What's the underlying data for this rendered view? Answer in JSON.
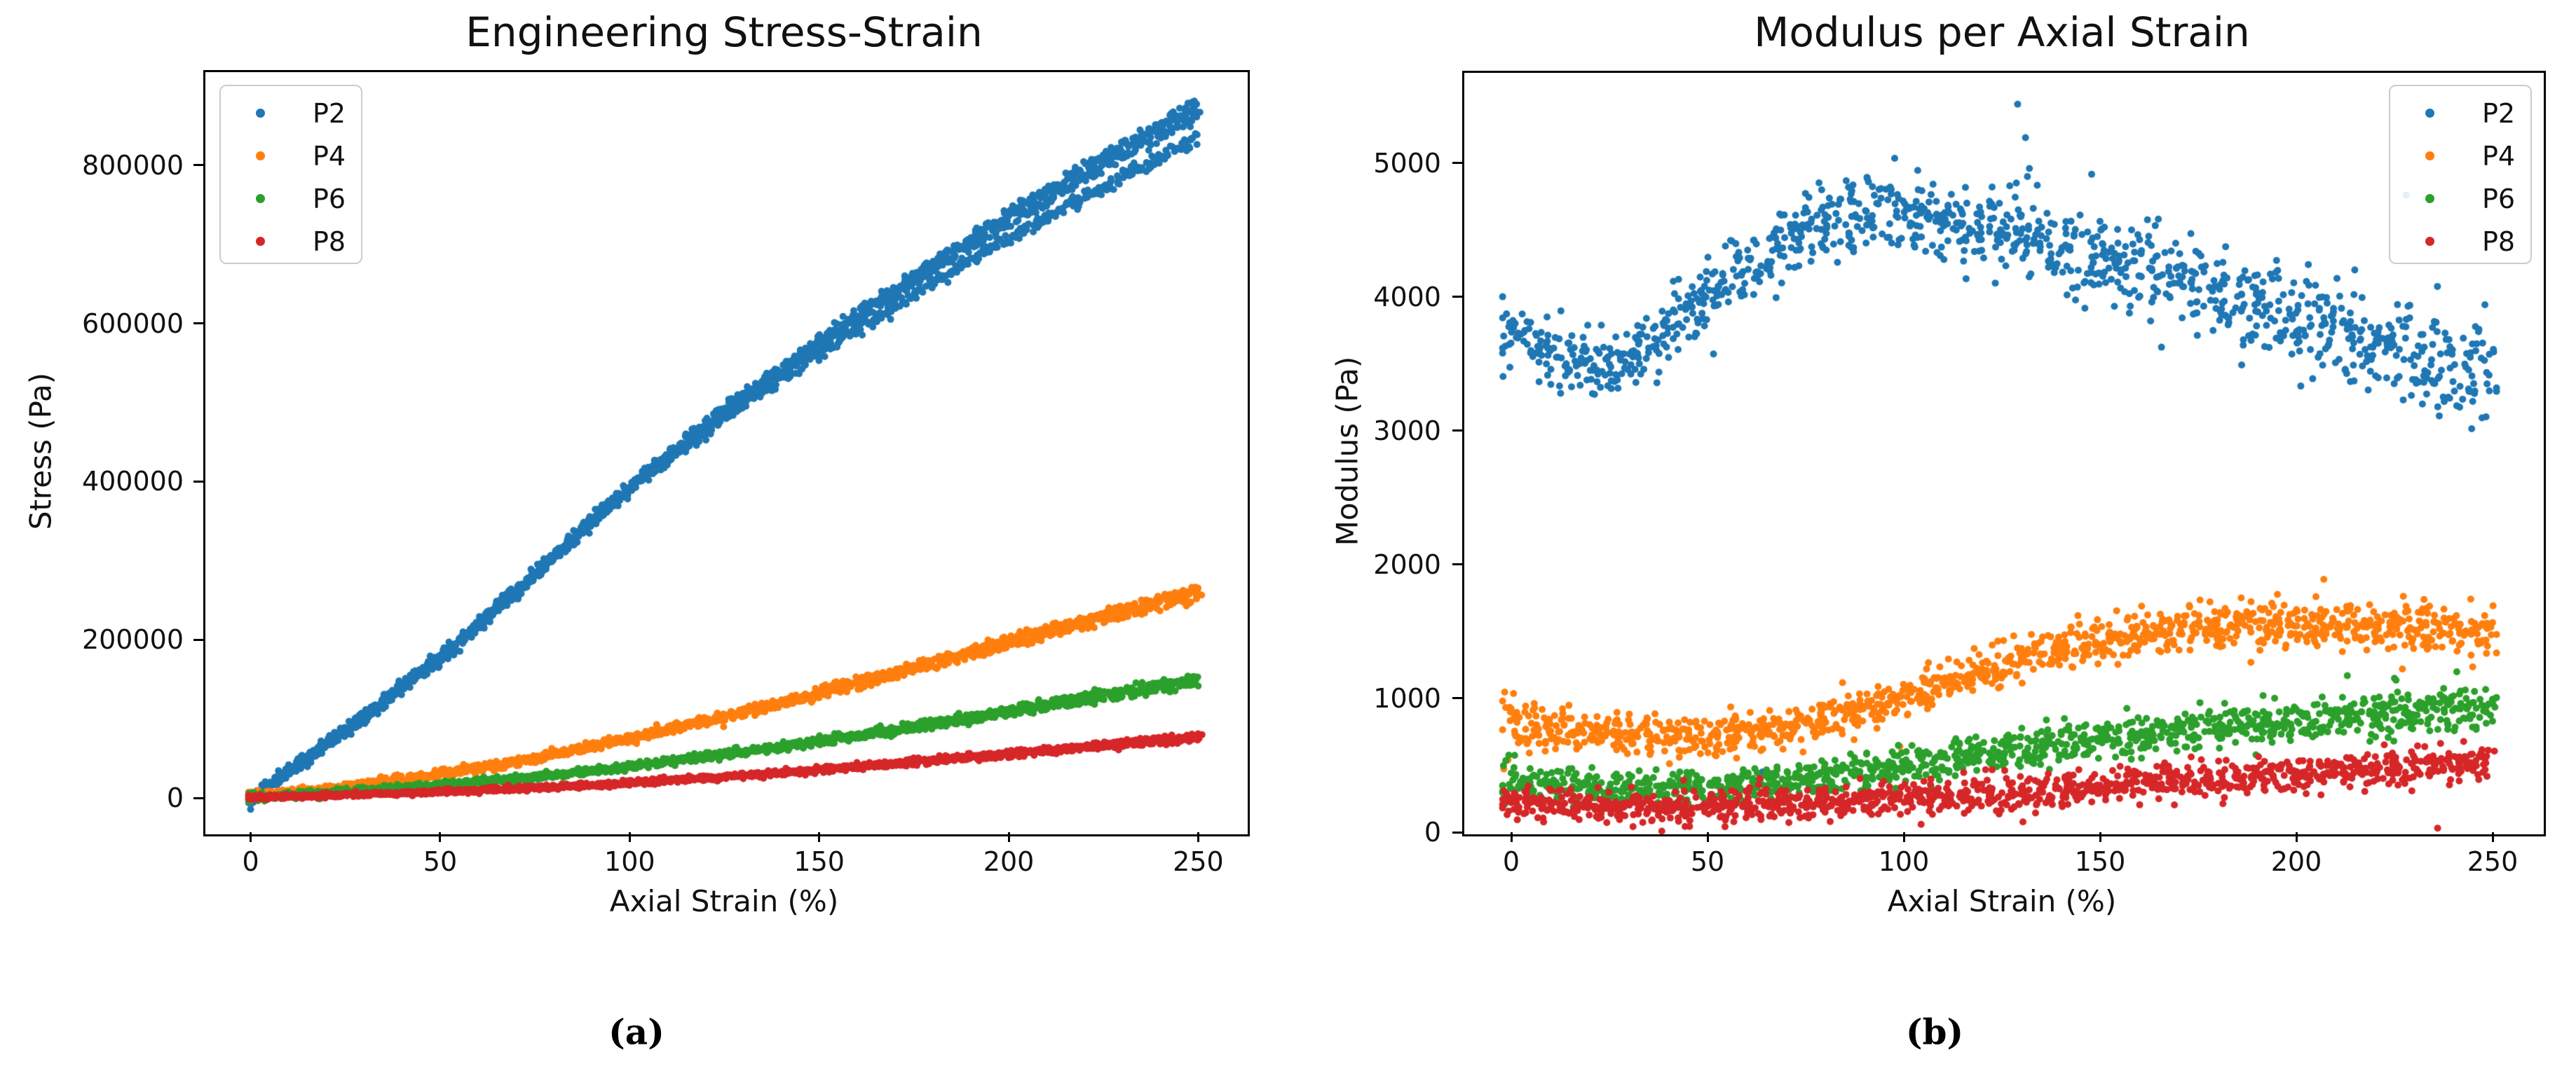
{
  "captions": {
    "a": "(a)",
    "b": "(b)"
  },
  "palette": {
    "blue": "#1f77b4",
    "orange": "#ff7f0e",
    "green": "#2ca02c",
    "red": "#d62728",
    "axis": "#000000",
    "legend_border": "#cccccc"
  },
  "chart_data": [
    {
      "type": "scatter",
      "id": "a",
      "title": "Engineering Stress-Strain",
      "xlabel": "Axial Strain (%)",
      "ylabel": "Stress (Pa)",
      "xlim": [
        -12.5,
        262.5
      ],
      "ylim": [
        -43000,
        920000
      ],
      "x_ticks": [
        0,
        50,
        100,
        150,
        200,
        250
      ],
      "y_ticks": [
        0,
        200000,
        400000,
        600000,
        800000
      ],
      "grid": false,
      "legend_position": "upper-left",
      "marker_radius": 5,
      "series": [
        {
          "name": "P2",
          "color": "#1f77b4",
          "anchors": [
            [
              0,
              0
            ],
            [
              5,
              16000
            ],
            [
              10,
              34000
            ],
            [
              20,
              69000
            ],
            [
              30,
              104000
            ],
            [
              40,
              140000
            ],
            [
              50,
              178000
            ],
            [
              60,
              218000
            ],
            [
              75,
              283000
            ],
            [
              100,
              393000
            ],
            [
              125,
              488000
            ],
            [
              150,
              573000
            ],
            [
              175,
              653000
            ],
            [
              200,
              728000
            ],
            [
              225,
              798000
            ],
            [
              250,
              865000
            ]
          ],
          "noise": [
            4200,
            4200
          ],
          "x_jitter": 0.7,
          "branches": [
            {
              "offset": 15000,
              "ramp_start": 90
            },
            {
              "offset": 0,
              "ramp_start": 90
            },
            {
              "offset": -30000,
              "ramp_start": 90
            }
          ],
          "points_per_branch": 700
        },
        {
          "name": "P4",
          "color": "#ff7f0e",
          "anchors": [
            [
              0,
              2000
            ],
            [
              25,
              14000
            ],
            [
              50,
              30000
            ],
            [
              75,
              50000
            ],
            [
              100,
              76000
            ],
            [
              125,
              103000
            ],
            [
              150,
              133000
            ],
            [
              175,
              165000
            ],
            [
              200,
              197000
            ],
            [
              225,
              230000
            ],
            [
              250,
              262000
            ]
          ],
          "noise": [
            2600,
            2600
          ],
          "x_jitter": 0.7,
          "branches": [
            {
              "offset": 5000,
              "ramp_start": 60
            },
            {
              "offset": 0,
              "ramp_start": 60
            },
            {
              "offset": -7000,
              "ramp_start": 60
            }
          ],
          "points_per_branch": 500
        },
        {
          "name": "P6",
          "color": "#2ca02c",
          "anchors": [
            [
              0,
              1000
            ],
            [
              25,
              8000
            ],
            [
              50,
              16000
            ],
            [
              75,
              27000
            ],
            [
              100,
              40000
            ],
            [
              125,
              55000
            ],
            [
              150,
              72000
            ],
            [
              175,
              90000
            ],
            [
              200,
              110000
            ],
            [
              225,
              130000
            ],
            [
              250,
              150000
            ]
          ],
          "noise": [
            2200,
            2200
          ],
          "x_jitter": 0.7,
          "branches": [
            {
              "offset": 3500,
              "ramp_start": 60
            },
            {
              "offset": 0,
              "ramp_start": 60
            },
            {
              "offset": -5000,
              "ramp_start": 60
            }
          ],
          "points_per_branch": 500
        },
        {
          "name": "P8",
          "color": "#d62728",
          "anchors": [
            [
              0,
              500
            ],
            [
              25,
              4000
            ],
            [
              50,
              8000
            ],
            [
              75,
              13000
            ],
            [
              100,
              19000
            ],
            [
              125,
              27000
            ],
            [
              150,
              36000
            ],
            [
              175,
              46000
            ],
            [
              200,
              56000
            ],
            [
              225,
              67000
            ],
            [
              250,
              77000
            ]
          ],
          "noise": [
            1500,
            1500
          ],
          "x_jitter": 0.7,
          "branches": [
            {
              "offset": 2500,
              "ramp_start": 60
            },
            {
              "offset": 0,
              "ramp_start": 60
            },
            {
              "offset": -3000,
              "ramp_start": 60
            }
          ],
          "points_per_branch": 500
        }
      ]
    },
    {
      "type": "scatter",
      "id": "b",
      "title": "Modulus per Axial Strain",
      "xlabel": "Axial Strain (%)",
      "ylabel": "Modulus (Pa)",
      "xlim": [
        -12.5,
        262.5
      ],
      "ylim": [
        0,
        5690
      ],
      "x_ticks": [
        0,
        50,
        100,
        150,
        200,
        250
      ],
      "y_ticks": [
        0,
        1000,
        2000,
        3000,
        4000,
        5000
      ],
      "grid": false,
      "legend_position": "upper-right",
      "marker_radius": 5,
      "series": [
        {
          "name": "P2",
          "color": "#1f77b4",
          "anchors": [
            [
              -2,
              3700
            ],
            [
              8,
              3600
            ],
            [
              15,
              3520
            ],
            [
              25,
              3500
            ],
            [
              35,
              3620
            ],
            [
              45,
              3850
            ],
            [
              55,
              4100
            ],
            [
              65,
              4300
            ],
            [
              75,
              4480
            ],
            [
              85,
              4600
            ],
            [
              95,
              4650
            ],
            [
              105,
              4620
            ],
            [
              115,
              4550
            ],
            [
              125,
              4480
            ],
            [
              135,
              4420
            ],
            [
              145,
              4330
            ],
            [
              155,
              4250
            ],
            [
              165,
              4150
            ],
            [
              175,
              4060
            ],
            [
              185,
              3980
            ],
            [
              195,
              3900
            ],
            [
              205,
              3820
            ],
            [
              215,
              3720
            ],
            [
              225,
              3620
            ],
            [
              235,
              3520
            ],
            [
              245,
              3450
            ],
            [
              250,
              3490
            ]
          ],
          "noise": [
            110,
            205
          ],
          "x_jitter": 1.6,
          "branches": [
            {
              "offset": 0,
              "ramp_start": 0
            }
          ],
          "points_per_branch": 1150,
          "outliers": [
            [
              129,
              5440
            ],
            [
              131,
              5190
            ],
            [
              132,
              4960
            ],
            [
              131.5,
              4900
            ],
            [
              127,
              4830
            ],
            [
              228,
              4760
            ],
            [
              64,
              450
            ],
            [
              47,
              3730
            ]
          ]
        },
        {
          "name": "P4",
          "color": "#ff7f0e",
          "anchors": [
            [
              -2,
              840
            ],
            [
              10,
              780
            ],
            [
              20,
              740
            ],
            [
              30,
              710
            ],
            [
              40,
              700
            ],
            [
              50,
              710
            ],
            [
              60,
              740
            ],
            [
              70,
              790
            ],
            [
              80,
              850
            ],
            [
              90,
              930
            ],
            [
              100,
              1010
            ],
            [
              110,
              1100
            ],
            [
              120,
              1190
            ],
            [
              130,
              1280
            ],
            [
              140,
              1360
            ],
            [
              150,
              1430
            ],
            [
              160,
              1480
            ],
            [
              170,
              1520
            ],
            [
              180,
              1540
            ],
            [
              190,
              1550
            ],
            [
              200,
              1550
            ],
            [
              210,
              1540
            ],
            [
              220,
              1530
            ],
            [
              230,
              1510
            ],
            [
              240,
              1490
            ],
            [
              250,
              1470
            ]
          ],
          "noise": [
            78,
            95
          ],
          "x_jitter": 1.6,
          "start_flare": 1.9,
          "branches": [
            {
              "offset": 0,
              "ramp_start": 0
            }
          ],
          "points_per_branch": 1150,
          "outliers": [
            [
              207,
              1890
            ],
            [
              205,
              1760
            ],
            [
              99,
              640
            ]
          ]
        },
        {
          "name": "P6",
          "color": "#2ca02c",
          "anchors": [
            [
              -2,
              390
            ],
            [
              10,
              360
            ],
            [
              20,
              340
            ],
            [
              30,
              325
            ],
            [
              40,
              320
            ],
            [
              50,
              330
            ],
            [
              60,
              350
            ],
            [
              70,
              380
            ],
            [
              80,
              415
            ],
            [
              90,
              455
            ],
            [
              100,
              495
            ],
            [
              110,
              540
            ],
            [
              120,
              580
            ],
            [
              130,
              620
            ],
            [
              140,
              660
            ],
            [
              150,
              695
            ],
            [
              160,
              725
            ],
            [
              170,
              755
            ],
            [
              180,
              785
            ],
            [
              190,
              815
            ],
            [
              200,
              840
            ],
            [
              210,
              865
            ],
            [
              220,
              885
            ],
            [
              230,
              905
            ],
            [
              240,
              920
            ],
            [
              250,
              925
            ]
          ],
          "noise": [
            62,
            80
          ],
          "x_jitter": 1.6,
          "start_flare": 1.3,
          "branches": [
            {
              "offset": 0,
              "ramp_start": 0
            }
          ],
          "points_per_branch": 1150,
          "outliers": [
            [
              213,
              1170
            ],
            [
              225,
              1150
            ]
          ]
        },
        {
          "name": "P8",
          "color": "#d62728",
          "anchors": [
            [
              -2,
              235
            ],
            [
              10,
              215
            ],
            [
              20,
              200
            ],
            [
              30,
              190
            ],
            [
              40,
              185
            ],
            [
              50,
              190
            ],
            [
              60,
              200
            ],
            [
              70,
              210
            ],
            [
              80,
              225
            ],
            [
              90,
              240
            ],
            [
              100,
              255
            ],
            [
              120,
              285
            ],
            [
              140,
              320
            ],
            [
              160,
              365
            ],
            [
              180,
              405
            ],
            [
              200,
              440
            ],
            [
              220,
              475
            ],
            [
              240,
              505
            ],
            [
              250,
              515
            ]
          ],
          "noise": [
            58,
            70
          ],
          "x_jitter": 1.6,
          "branches": [
            {
              "offset": 0,
              "ramp_start": 0
            }
          ],
          "points_per_branch": 1150,
          "outliers": [
            [
              247,
              590
            ],
            [
              236,
              30
            ]
          ]
        }
      ]
    }
  ]
}
